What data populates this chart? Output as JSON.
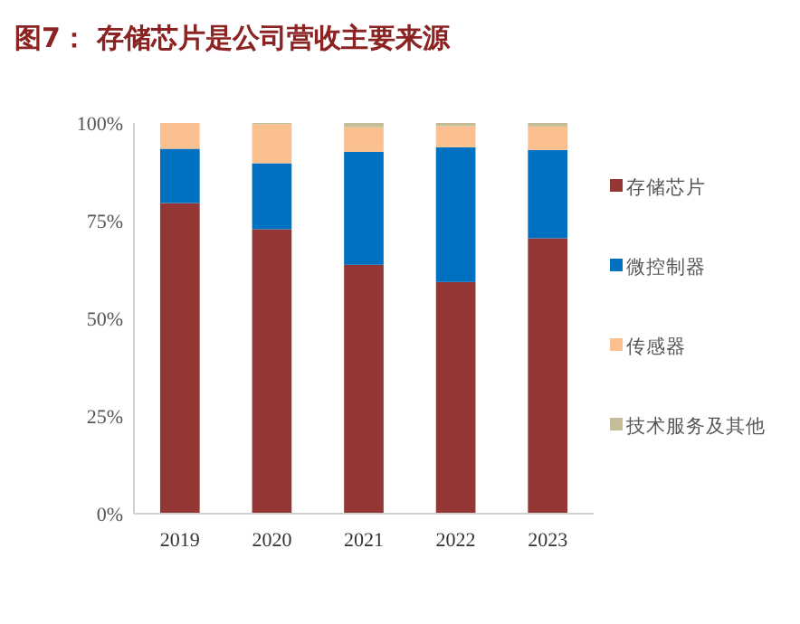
{
  "chart_data": {
    "type": "bar",
    "title": "图7：  存储芯片是公司营收主要来源",
    "categories": [
      "2019",
      "2020",
      "2021",
      "2022",
      "2023"
    ],
    "stacked": true,
    "ylim": [
      0,
      100
    ],
    "yticks": [
      {
        "value": 0,
        "label": "0%"
      },
      {
        "value": 25,
        "label": "25%"
      },
      {
        "value": 50,
        "label": "50%"
      },
      {
        "value": 75,
        "label": "75%"
      },
      {
        "value": 100,
        "label": "100%"
      }
    ],
    "legend": "right",
    "series": [
      {
        "name": "存储芯片",
        "color": "#943634",
        "values": [
          79.5,
          72.8,
          63.7,
          59.3,
          70.5
        ]
      },
      {
        "name": "微控制器",
        "color": "#0070c0",
        "values": [
          13.9,
          16.9,
          28.9,
          34.5,
          22.6
        ]
      },
      {
        "name": "传感器",
        "color": "#fac090",
        "values": [
          6.6,
          10.0,
          6.3,
          5.4,
          6.0
        ]
      },
      {
        "name": "技术服务及其他",
        "color": "#c4bd97",
        "values": [
          0,
          0.3,
          1.1,
          0.8,
          0.9
        ]
      }
    ]
  }
}
